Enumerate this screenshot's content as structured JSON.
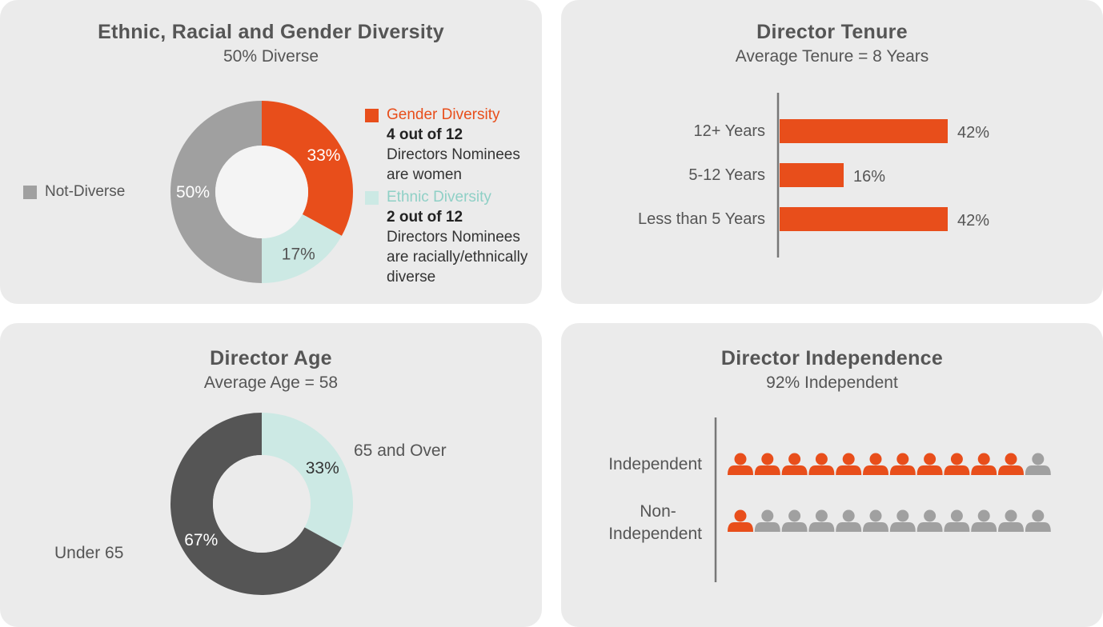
{
  "colors": {
    "orange": "#e84e1b",
    "mint": "#cce9e4",
    "gray": "#a0a0a0",
    "dark": "#555555",
    "hole": "#f4f4f4",
    "panel": "#ebebeb",
    "mint_text": "#8fd0c6"
  },
  "diversity": {
    "title": "Ethnic, Racial and Gender Diversity",
    "subtitle": "50% Diverse",
    "not_diverse_label": "Not-Diverse",
    "gender_title": "Gender Diversity",
    "gender_bold": "4 out of 12",
    "gender_line1": "Directors Nominees",
    "gender_line2": "are women",
    "ethnic_title": "Ethnic Diversity",
    "ethnic_bold": "2 out of 12",
    "ethnic_line1": "Directors Nominees",
    "ethnic_line2": "are racially/ethnically",
    "ethnic_line3": "diverse"
  },
  "tenure": {
    "title": "Director Tenure",
    "subtitle": "Average Tenure = 8 Years"
  },
  "age": {
    "title": "Director Age",
    "subtitle": "Average Age = 58",
    "over_label": "65 and Over",
    "under_label": "Under 65"
  },
  "independence": {
    "title": "Director Independence",
    "subtitle": "92% Independent",
    "independent_label": "Independent",
    "non_label_1": "Non-",
    "non_label_2": "Independent"
  },
  "chart_data": [
    {
      "type": "pie",
      "title": "Ethnic, Racial and Gender Diversity",
      "subtitle": "50% Diverse",
      "categories": [
        "Gender Diversity",
        "Ethnic Diversity",
        "Not-Diverse"
      ],
      "values": [
        33,
        17,
        50
      ],
      "labels": [
        "33%",
        "17%",
        "50%"
      ],
      "colors": [
        "#e84e1b",
        "#cce9e4",
        "#a0a0a0"
      ],
      "label_colors": [
        "#ffffff",
        "#555555",
        "#ffffff"
      ]
    },
    {
      "type": "bar",
      "orientation": "horizontal",
      "title": "Director Tenure",
      "subtitle": "Average Tenure = 8 Years",
      "categories": [
        "12+ Years",
        "5-12 Years",
        "Less than 5 Years"
      ],
      "values": [
        42,
        16,
        42
      ],
      "labels": [
        "42%",
        "16%",
        "42%"
      ],
      "xlim": [
        0,
        48
      ]
    },
    {
      "type": "pie",
      "title": "Director Age",
      "subtitle": "Average Age = 58",
      "categories": [
        "65 and Over",
        "Under 65"
      ],
      "values": [
        33,
        67
      ],
      "labels": [
        "33%",
        "67%"
      ],
      "colors": [
        "#cce9e4",
        "#555555"
      ],
      "label_colors": [
        "#333333",
        "#ffffff"
      ]
    },
    {
      "type": "pictogram",
      "title": "Director Independence",
      "subtitle": "92% Independent",
      "total": 12,
      "categories": [
        "Independent",
        "Non-Independent"
      ],
      "values": [
        11,
        1
      ]
    }
  ]
}
